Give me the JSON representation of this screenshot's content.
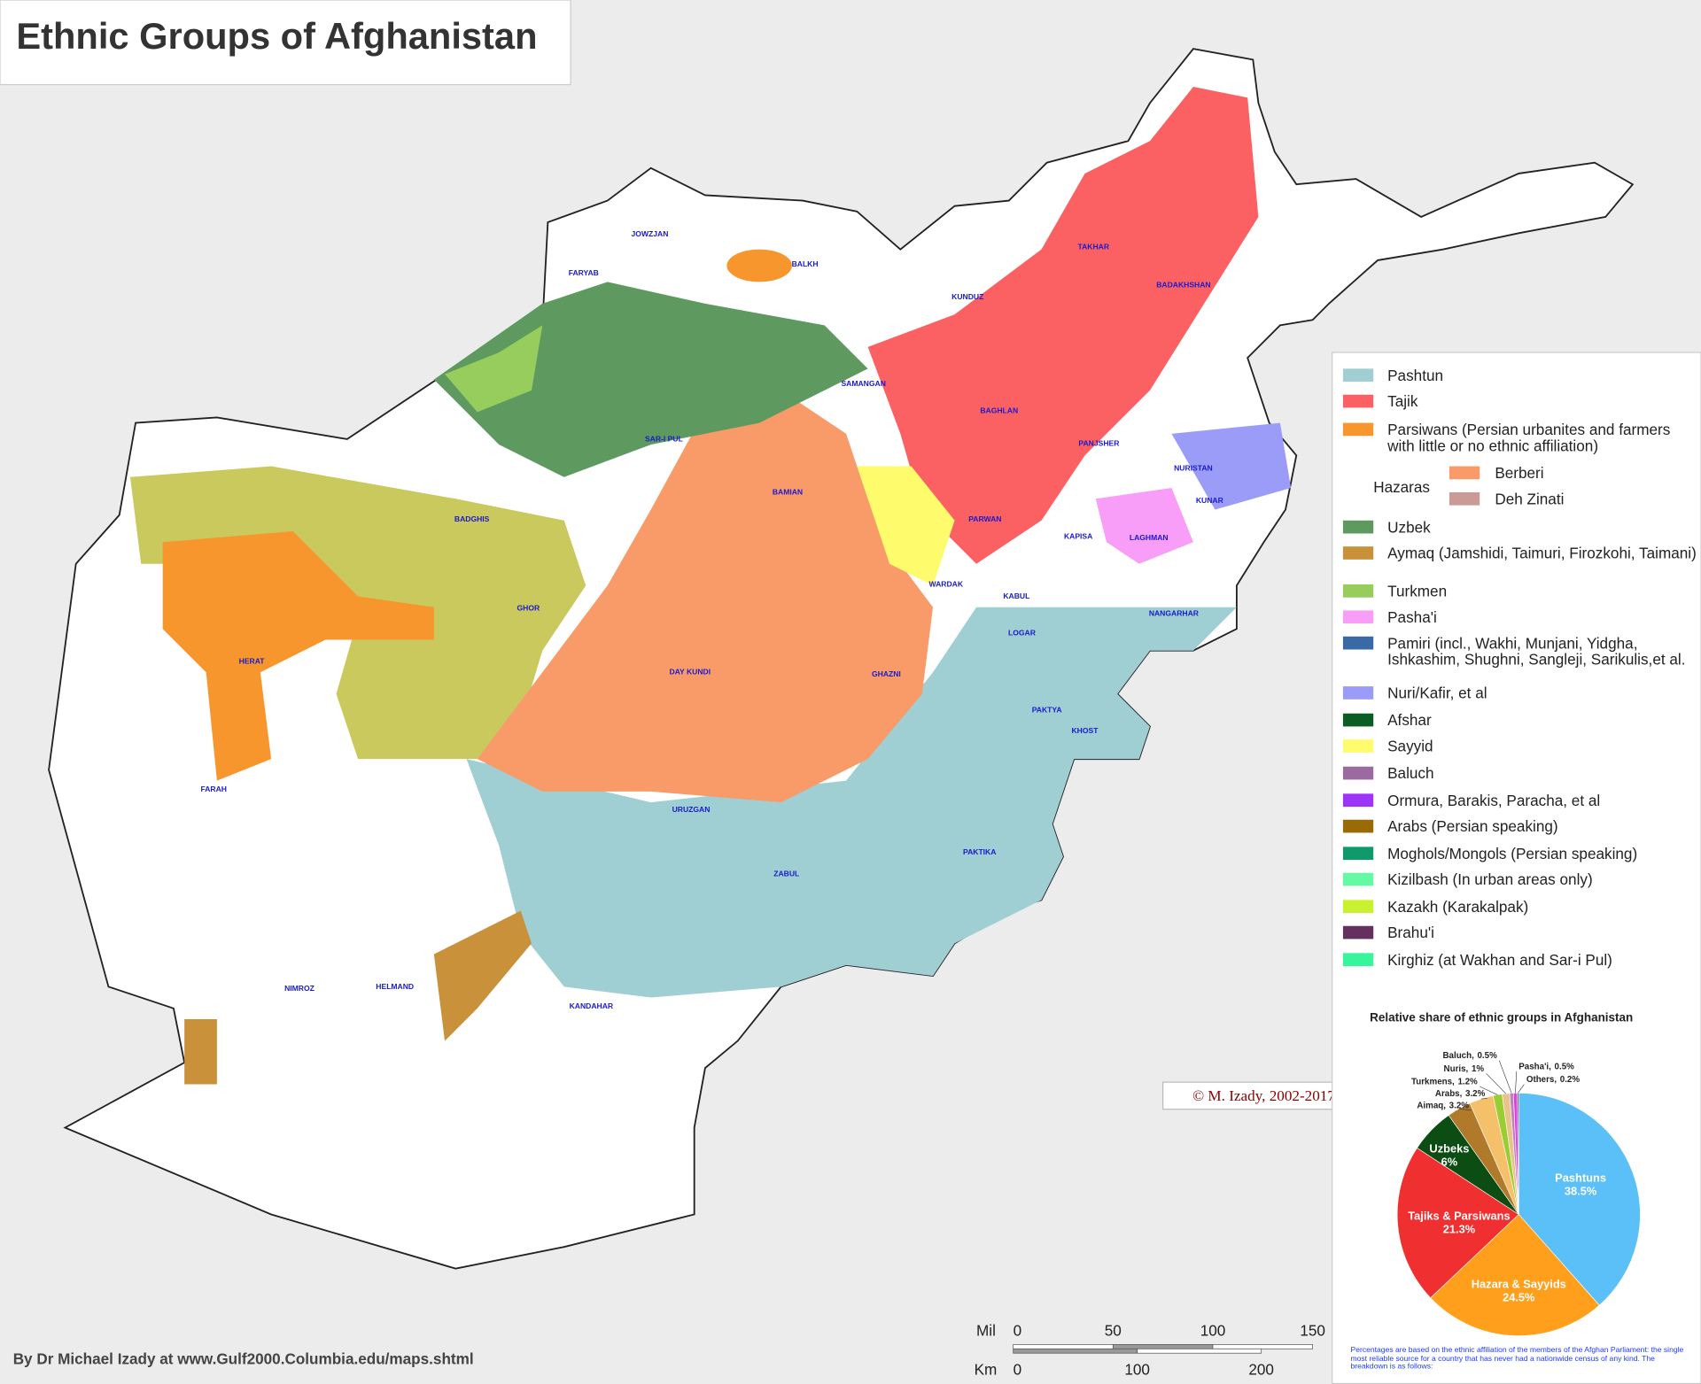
{
  "title": "Ethnic Groups of Afghanistan",
  "credit": "By Dr Michael Izady at www.Gulf2000.Columbia.edu/maps.shtml",
  "copyright": "© M. Izady, 2002-2017",
  "map_labels": [
    "HERAT",
    "KABUL",
    "KANDAHAR",
    "BALKH",
    "GHAZNI",
    "FARAH",
    "HELMAND",
    "NIMROZ",
    "ZABUL",
    "BAMIAN",
    "GHOR",
    "BADGHIS",
    "FARYAB",
    "JOWZJAN",
    "KUNDUZ",
    "TAKHAR",
    "BADAKHSHAN",
    "PAKTIKA",
    "KHOST",
    "PAKTYA",
    "NANGARHAR",
    "NURISTAN",
    "DAY KUNDI",
    "URUZGAN",
    "WARDAK",
    "LOGAR",
    "PARWAN",
    "KAPISA",
    "LAGHMAN",
    "KUNAR",
    "PANJSHER",
    "BAGHLAN",
    "SAMANGAN",
    "SAR-I PUL"
  ],
  "legend": {
    "items": [
      {
        "name": "Pashtun",
        "color": "#9fcfd2"
      },
      {
        "name": "Tajik",
        "color": "#fb6163"
      },
      {
        "name": "Parsiwans (Persian urbanites and farmers with little or no ethnic affiliation)",
        "color": "#f7962c"
      },
      {
        "name": "Uzbek",
        "color": "#5e9a60"
      },
      {
        "name": "Aymaq (Jamshidi, Taimuri, Firozkohi, Taimani)",
        "color": "#c9913a"
      },
      {
        "name": "Turkmen",
        "color": "#96cd5c"
      },
      {
        "name": "Pasha'i",
        "color": "#f99ef8"
      },
      {
        "name": "Pamiri (incl., Wakhi, Munjani, Yidgha, Ishkashim, Shughni, Sangleji, Sarikulis,et al.",
        "color": "#3a6aa3"
      },
      {
        "name": "Nuri/Kafir, et al",
        "color": "#9b9cf8"
      },
      {
        "name": "Afshar",
        "color": "#0b5e23"
      },
      {
        "name": "Sayyid",
        "color": "#fefb6d"
      },
      {
        "name": "Baluch",
        "color": "#9a6aa0"
      },
      {
        "name": "Ormura, Barakis, Paracha, et al",
        "color": "#9c35f5"
      },
      {
        "name": "Arabs (Persian speaking)",
        "color": "#9a6a06"
      },
      {
        "name": "Moghols/Mongols (Persian speaking)",
        "color": "#0e9a6a"
      },
      {
        "name": "Kizilbash (In urban areas only)",
        "color": "#65f9a3"
      },
      {
        "name": "Kazakh (Karakalpak)",
        "color": "#c9f12f"
      },
      {
        "name": "Brahu'i",
        "color": "#64305f"
      },
      {
        "name": "Kirghiz (at Wakhan and Sar-i Pul)",
        "color": "#36f59b"
      }
    ],
    "hazaras": {
      "name": "Hazaras",
      "items": [
        {
          "name": "Berberi",
          "color": "#f99b69"
        },
        {
          "name": "Deh Zinati",
          "color": "#c99a96"
        }
      ]
    }
  },
  "chart_data": {
    "type": "pie",
    "title": "Relative share of ethnic groups in Afghanistan",
    "categories": [
      "Pashtuns",
      "Hazara & Sayyids",
      "Tajiks & Parsiwans",
      "Uzbeks",
      "Aimaq,",
      "Arabs,",
      "Turkmens,",
      "Nuris,",
      "Baluch,",
      "Pasha'i,",
      "Others,"
    ],
    "values": [
      38.5,
      24.5,
      21.3,
      6,
      3.2,
      3.2,
      1.2,
      1,
      0.5,
      0.5,
      0.2
    ],
    "value_labels": [
      "38.5%",
      "24.5%",
      "21.3%",
      "6%",
      "3.2%",
      "3.2%",
      "1.2%",
      "1%",
      "0.5%",
      "0.5%",
      "0.2%"
    ],
    "colors": [
      "#5bc0f8",
      "#ff9f1c",
      "#f03030",
      "#0b4d12",
      "#b07a2a",
      "#f4c06a",
      "#9acd32",
      "#e8c48a",
      "#c080c0",
      "#e040e0",
      "#8040ff"
    ],
    "note": "Percentages are based on the ethnic affiliation of the members of the Afghan Parliament: the single most reliable source for a country that has never had a nationwide census of any kind. The breakdown is as follows:"
  },
  "scale": {
    "mile_label": "Mil",
    "km_label": "Km",
    "miles": [
      0,
      50,
      100,
      150
    ],
    "km": [
      0,
      100,
      200
    ]
  }
}
